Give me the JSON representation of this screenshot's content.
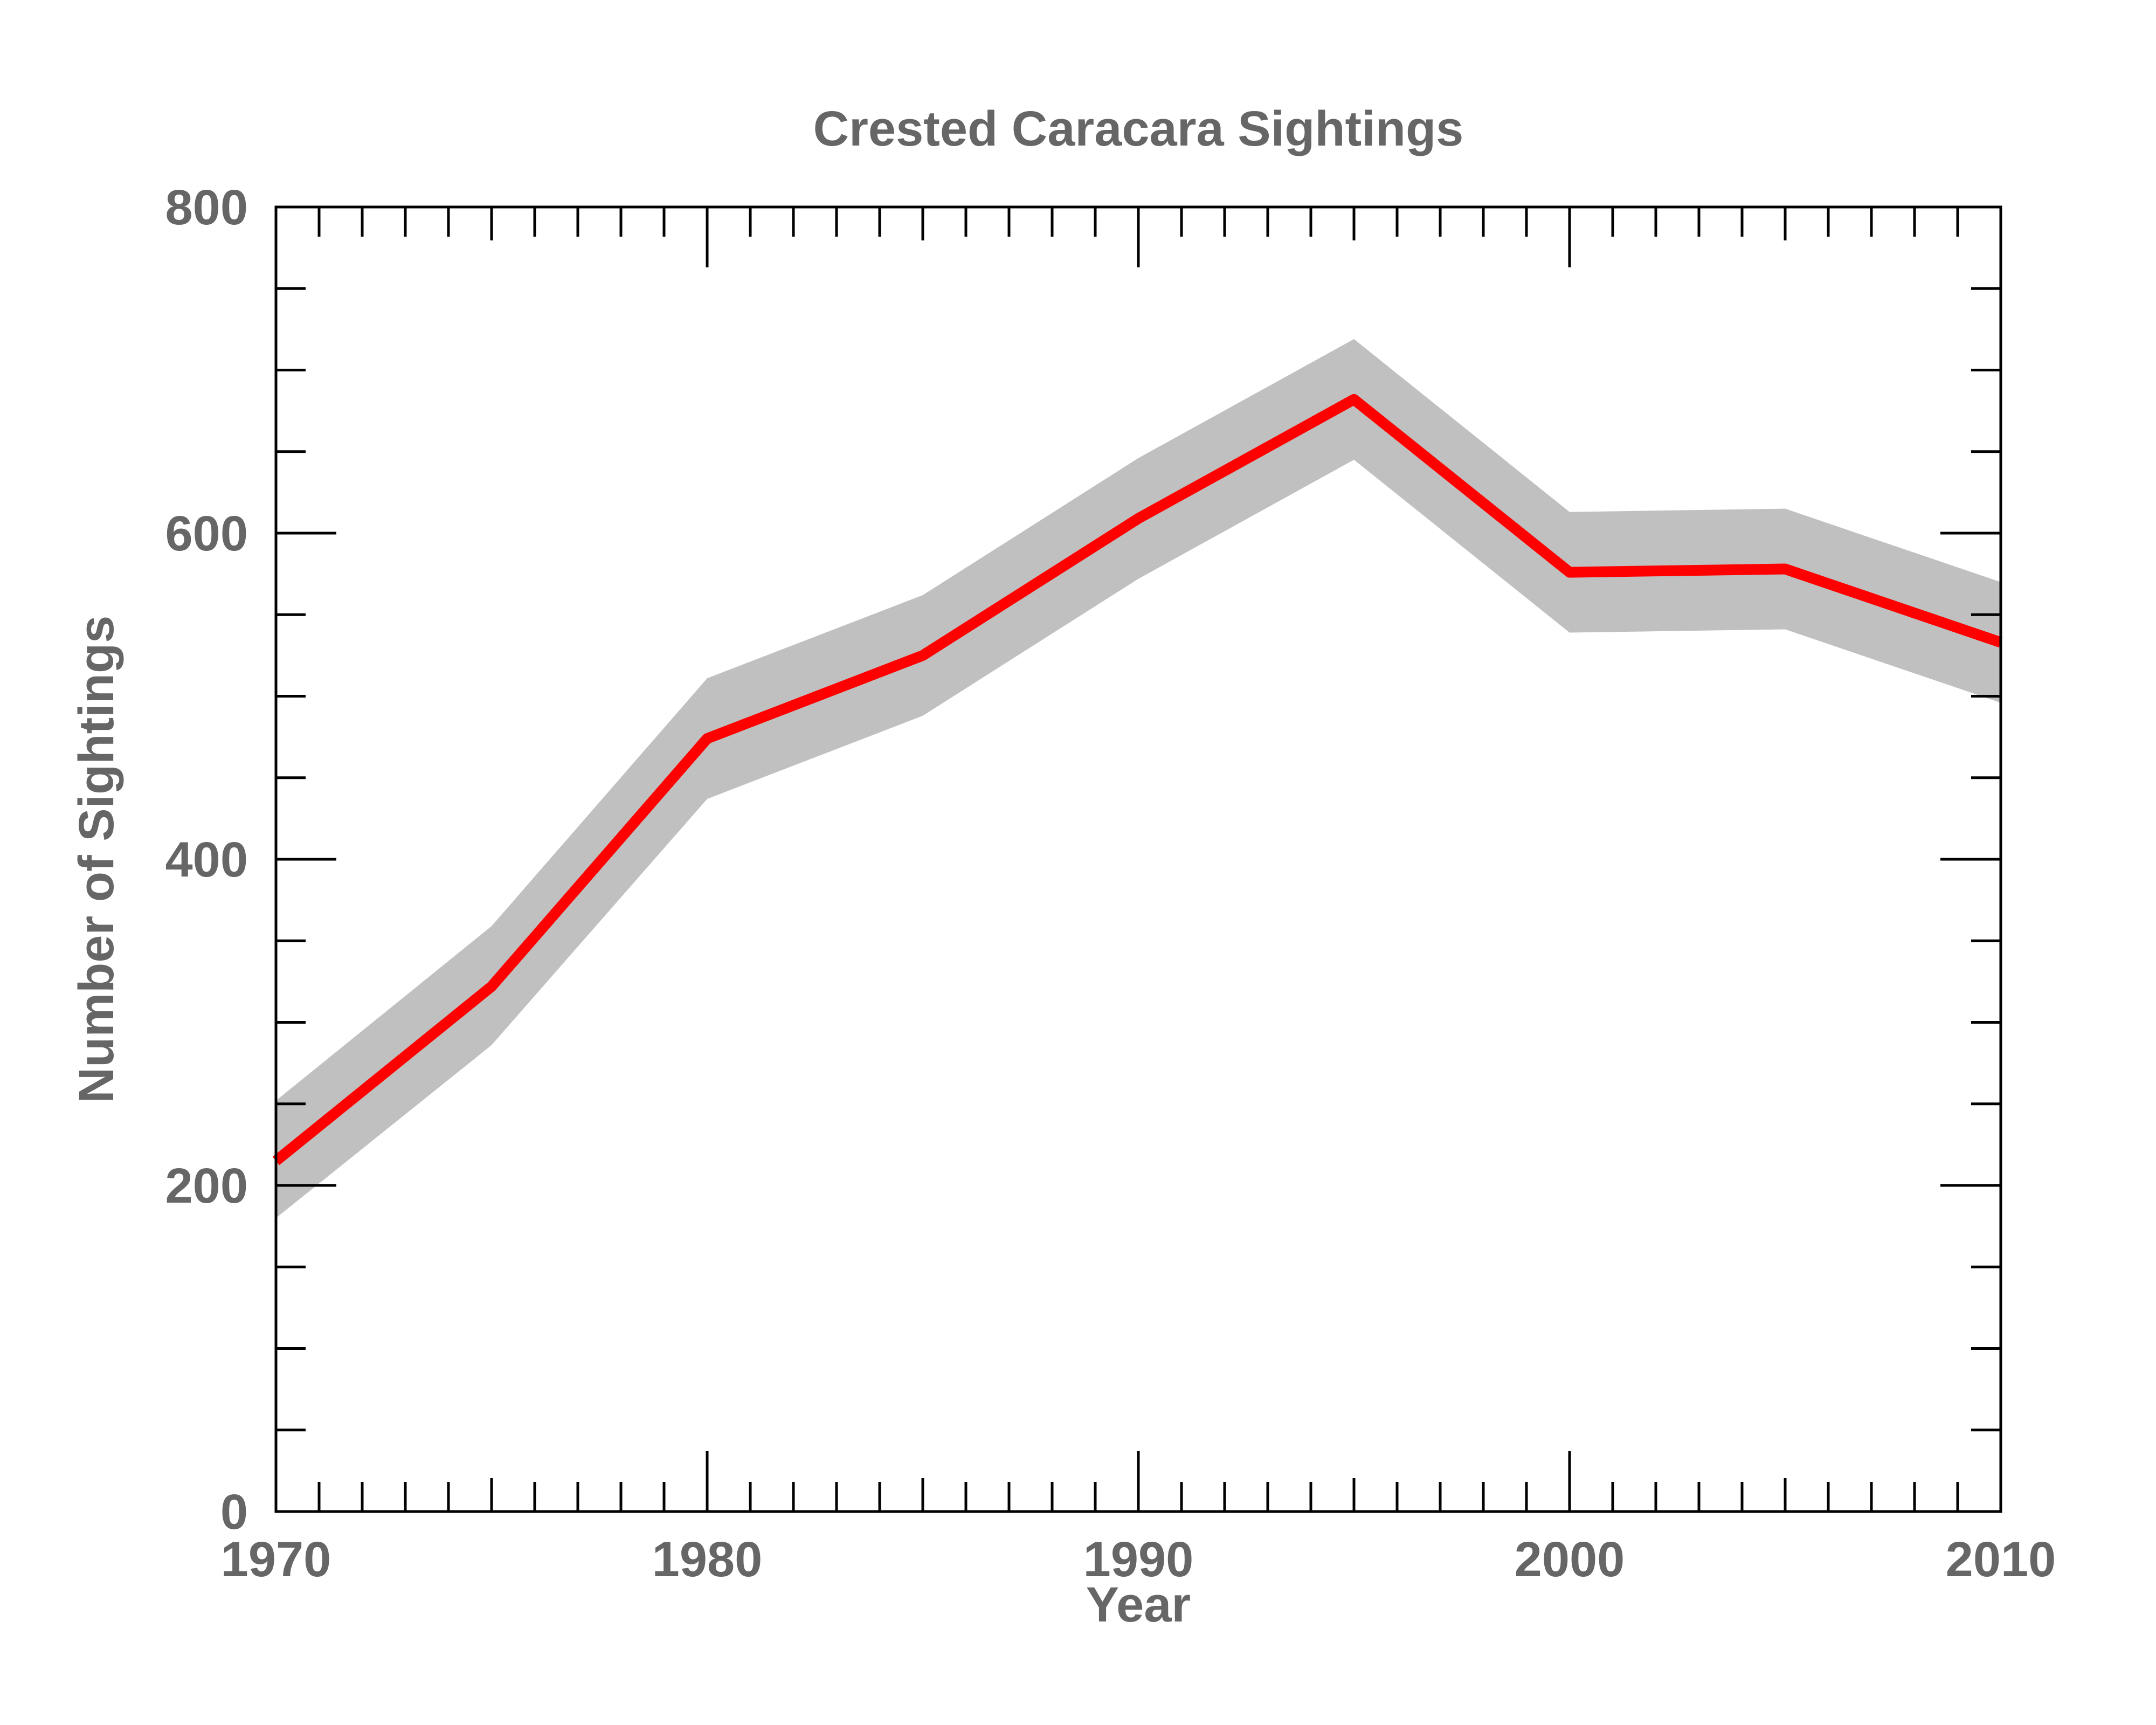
{
  "chart_data": {
    "type": "line",
    "title": "Crested Caracara Sightings",
    "xlabel": "Year",
    "ylabel": "Number of Sightings",
    "xlim": [
      1970,
      2010
    ],
    "ylim": [
      0,
      800
    ],
    "x_ticks": [
      1970,
      1980,
      1990,
      2000,
      2010
    ],
    "y_ticks": [
      0,
      200,
      400,
      600,
      800
    ],
    "x_tick_labels": [
      "1970",
      "1980",
      "1990",
      "2000",
      "2010"
    ],
    "y_tick_labels": [
      "0",
      "200",
      "400",
      "600",
      "800"
    ],
    "x_minor_step": 1,
    "y_minor_step": 50,
    "grid": false,
    "x": [
      1970,
      1975,
      1980,
      1985,
      1990,
      1995,
      2000,
      2005,
      2010
    ],
    "series": [
      {
        "values": [
          215,
          322,
          474,
          525,
          609,
          682,
          576,
          578,
          533
        ],
        "lower": [
          180,
          286,
          437,
          488,
          572,
          645,
          539,
          541,
          496
        ],
        "upper": [
          252,
          359,
          511,
          562,
          646,
          719,
          613,
          615,
          570
        ],
        "color": "#ff0000",
        "band_color": "#c0c0c0"
      }
    ]
  }
}
